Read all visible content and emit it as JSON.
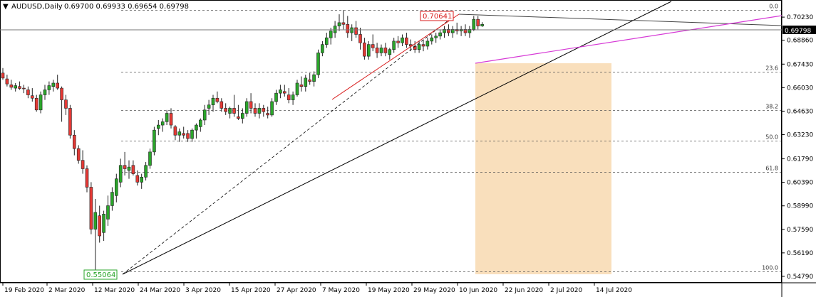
{
  "header": {
    "symbol_timeframe": "AUDUSD,Daily",
    "ohlc": "0.69700 0.69933 0.69654 0.69798"
  },
  "current_price": "0.69798",
  "high_label": "0.70641",
  "low_label": "0.55064",
  "fibonacci": {
    "levels": [
      {
        "label": "0.0",
        "price": 0.70641
      },
      {
        "label": "23.6",
        "price": 0.66965
      },
      {
        "label": "38.2",
        "price": 0.64691
      },
      {
        "label": "50.0",
        "price": 0.62853
      },
      {
        "label": "61.8",
        "price": 0.61015
      },
      {
        "label": "100.0",
        "price": 0.55064
      }
    ]
  },
  "colors": {
    "bull": "#2aa52a",
    "bear": "#e53935",
    "box": "#f8d9b0",
    "red_line": "#d81b1b",
    "magenta_line": "#d63ad6",
    "grid": "#555555"
  },
  "chart_data": {
    "type": "candlestick",
    "title": "AUDUSD,Daily",
    "y_axis": {
      "ticks": [
        "0.70230",
        "0.68860",
        "0.67430",
        "0.66030",
        "0.64630",
        "0.63230",
        "0.61790",
        "0.60390",
        "0.58990",
        "0.57590",
        "0.56190",
        "0.54790"
      ],
      "range": [
        0.5445,
        0.7125
      ]
    },
    "x_axis": {
      "ticks": [
        "19 Feb 2020",
        "2 Mar 2020",
        "12 Mar 2020",
        "24 Mar 2020",
        "3 Apr 2020",
        "15 Apr 2020",
        "27 Apr 2020",
        "7 May 2020",
        "19 May 2020",
        "29 May 2020",
        "10 Jun 2020",
        "22 Jun 2020",
        "2 Jul 2020",
        "14 Jul 2020"
      ]
    },
    "candles": [
      [
        0.669,
        0.672,
        0.665,
        0.666
      ],
      [
        0.6655,
        0.668,
        0.661,
        0.6625
      ],
      [
        0.662,
        0.665,
        0.659,
        0.6605
      ],
      [
        0.66,
        0.663,
        0.658,
        0.6615
      ],
      [
        0.661,
        0.664,
        0.659,
        0.6598
      ],
      [
        0.66,
        0.662,
        0.657,
        0.6598
      ],
      [
        0.659,
        0.661,
        0.654,
        0.656
      ],
      [
        0.6555,
        0.66,
        0.652,
        0.654
      ],
      [
        0.654,
        0.656,
        0.646,
        0.647
      ],
      [
        0.647,
        0.658,
        0.645,
        0.656
      ],
      [
        0.656,
        0.662,
        0.653,
        0.659
      ],
      [
        0.659,
        0.664,
        0.656,
        0.6615
      ],
      [
        0.661,
        0.665,
        0.658,
        0.663
      ],
      [
        0.663,
        0.668,
        0.659,
        0.66
      ],
      [
        0.66,
        0.661,
        0.64,
        0.653
      ],
      [
        0.653,
        0.656,
        0.644,
        0.648
      ],
      [
        0.648,
        0.65,
        0.63,
        0.632
      ],
      [
        0.632,
        0.635,
        0.62,
        0.624
      ],
      [
        0.624,
        0.626,
        0.615,
        0.617
      ],
      [
        0.617,
        0.623,
        0.609,
        0.612
      ],
      [
        0.612,
        0.614,
        0.598,
        0.601
      ],
      [
        0.601,
        0.604,
        0.573,
        0.576
      ],
      [
        0.576,
        0.594,
        0.5506,
        0.586
      ],
      [
        0.584,
        0.59,
        0.568,
        0.572
      ],
      [
        0.574,
        0.587,
        0.569,
        0.585
      ],
      [
        0.582,
        0.596,
        0.578,
        0.59
      ],
      [
        0.59,
        0.601,
        0.587,
        0.598
      ],
      [
        0.596,
        0.609,
        0.592,
        0.606
      ],
      [
        0.604,
        0.618,
        0.601,
        0.614
      ],
      [
        0.614,
        0.622,
        0.608,
        0.612
      ],
      [
        0.611,
        0.617,
        0.606,
        0.613
      ],
      [
        0.614,
        0.617,
        0.608,
        0.609
      ],
      [
        0.608,
        0.611,
        0.602,
        0.604
      ],
      [
        0.604,
        0.609,
        0.6,
        0.607
      ],
      [
        0.607,
        0.616,
        0.605,
        0.614
      ],
      [
        0.614,
        0.624,
        0.612,
        0.622
      ],
      [
        0.622,
        0.637,
        0.62,
        0.635
      ],
      [
        0.636,
        0.641,
        0.632,
        0.638
      ],
      [
        0.638,
        0.642,
        0.634,
        0.64
      ],
      [
        0.64,
        0.647,
        0.638,
        0.645
      ],
      [
        0.645,
        0.648,
        0.636,
        0.638
      ],
      [
        0.637,
        0.638,
        0.629,
        0.632
      ],
      [
        0.632,
        0.636,
        0.628,
        0.634
      ],
      [
        0.633,
        0.637,
        0.63,
        0.632
      ],
      [
        0.633,
        0.635,
        0.628,
        0.63
      ],
      [
        0.63,
        0.636,
        0.628,
        0.635
      ],
      [
        0.635,
        0.639,
        0.63,
        0.638
      ],
      [
        0.637,
        0.642,
        0.634,
        0.641
      ],
      [
        0.641,
        0.65,
        0.638,
        0.647
      ],
      [
        0.648,
        0.653,
        0.644,
        0.65
      ],
      [
        0.65,
        0.656,
        0.646,
        0.654
      ],
      [
        0.654,
        0.658,
        0.651,
        0.652
      ],
      [
        0.652,
        0.654,
        0.646,
        0.648
      ],
      [
        0.648,
        0.651,
        0.644,
        0.646
      ],
      [
        0.645,
        0.649,
        0.642,
        0.648
      ],
      [
        0.648,
        0.656,
        0.643,
        0.645
      ],
      [
        0.643,
        0.65,
        0.641,
        0.642
      ],
      [
        0.642,
        0.648,
        0.639,
        0.645
      ],
      [
        0.645,
        0.654,
        0.643,
        0.652
      ],
      [
        0.652,
        0.657,
        0.645,
        0.648
      ],
      [
        0.648,
        0.651,
        0.643,
        0.645
      ],
      [
        0.645,
        0.651,
        0.642,
        0.648
      ],
      [
        0.648,
        0.65,
        0.643,
        0.646
      ],
      [
        0.645,
        0.649,
        0.642,
        0.644
      ],
      [
        0.644,
        0.654,
        0.643,
        0.652
      ],
      [
        0.652,
        0.659,
        0.65,
        0.657
      ],
      [
        0.657,
        0.662,
        0.654,
        0.659
      ],
      [
        0.658,
        0.662,
        0.655,
        0.657
      ],
      [
        0.656,
        0.66,
        0.651,
        0.653
      ],
      [
        0.653,
        0.658,
        0.65,
        0.656
      ],
      [
        0.656,
        0.665,
        0.655,
        0.663
      ],
      [
        0.662,
        0.667,
        0.658,
        0.661
      ],
      [
        0.661,
        0.668,
        0.658,
        0.666
      ],
      [
        0.665,
        0.669,
        0.662,
        0.664
      ],
      [
        0.664,
        0.67,
        0.661,
        0.668
      ],
      [
        0.668,
        0.683,
        0.666,
        0.681
      ],
      [
        0.681,
        0.688,
        0.679,
        0.686
      ],
      [
        0.686,
        0.693,
        0.684,
        0.69
      ],
      [
        0.69,
        0.696,
        0.686,
        0.694
      ],
      [
        0.693,
        0.7,
        0.69,
        0.697
      ],
      [
        0.697,
        0.704,
        0.694,
        0.699
      ],
      [
        0.699,
        0.7064,
        0.695,
        0.698
      ],
      [
        0.698,
        0.703,
        0.69,
        0.693
      ],
      [
        0.693,
        0.698,
        0.688,
        0.696
      ],
      [
        0.696,
        0.7,
        0.69,
        0.692
      ],
      [
        0.692,
        0.696,
        0.683,
        0.687
      ],
      [
        0.687,
        0.69,
        0.677,
        0.679
      ],
      [
        0.679,
        0.688,
        0.677,
        0.686
      ],
      [
        0.686,
        0.692,
        0.682,
        0.684
      ],
      [
        0.684,
        0.687,
        0.678,
        0.681
      ],
      [
        0.681,
        0.686,
        0.679,
        0.684
      ],
      [
        0.684,
        0.687,
        0.679,
        0.681
      ],
      [
        0.68,
        0.684,
        0.677,
        0.683
      ],
      [
        0.683,
        0.69,
        0.681,
        0.688
      ],
      [
        0.688,
        0.691,
        0.684,
        0.687
      ],
      [
        0.687,
        0.692,
        0.685,
        0.69
      ],
      [
        0.69,
        0.693,
        0.684,
        0.686
      ],
      [
        0.686,
        0.689,
        0.682,
        0.685
      ],
      [
        0.685,
        0.688,
        0.681,
        0.683
      ],
      [
        0.683,
        0.688,
        0.681,
        0.686
      ],
      [
        0.686,
        0.689,
        0.682,
        0.685
      ],
      [
        0.685,
        0.69,
        0.683,
        0.688
      ],
      [
        0.688,
        0.692,
        0.686,
        0.69
      ],
      [
        0.69,
        0.693,
        0.687,
        0.691
      ],
      [
        0.691,
        0.695,
        0.689,
        0.693
      ],
      [
        0.693,
        0.697,
        0.69,
        0.695
      ],
      [
        0.695,
        0.698,
        0.691,
        0.693
      ],
      [
        0.693,
        0.697,
        0.69,
        0.695
      ],
      [
        0.695,
        0.699,
        0.692,
        0.694
      ],
      [
        0.694,
        0.697,
        0.691,
        0.695
      ],
      [
        0.695,
        0.698,
        0.691,
        0.693
      ],
      [
        0.693,
        0.697,
        0.69,
        0.695
      ],
      [
        0.695,
        0.703,
        0.694,
        0.701
      ],
      [
        0.701,
        0.703,
        0.695,
        0.697
      ],
      [
        0.697,
        0.6993,
        0.6965,
        0.698
      ]
    ]
  }
}
